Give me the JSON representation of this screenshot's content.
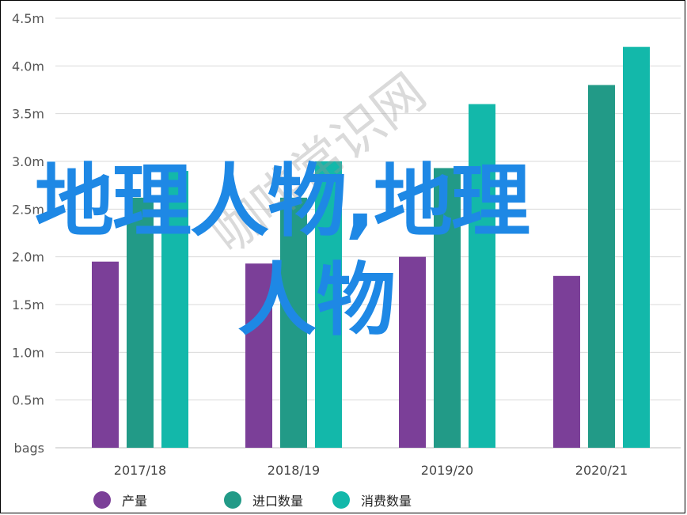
{
  "chart_data": {
    "type": "bar",
    "categories": [
      "2017/18",
      "2018/19",
      "2019/20",
      "2020/21"
    ],
    "series": [
      {
        "name": "产量",
        "color": "#7b3f98",
        "values": [
          1.95,
          1.93,
          2.0,
          1.8
        ]
      },
      {
        "name": "进口数量",
        "color": "#229a87",
        "values": [
          2.62,
          2.62,
          2.93,
          3.8
        ]
      },
      {
        "name": "消费数量",
        "color": "#13b8aa",
        "values": [
          2.9,
          3.0,
          3.6,
          4.2
        ]
      }
    ],
    "ytick_labels": [
      "bags",
      "0.5m",
      "1.0m",
      "1.5m",
      "2.0m",
      "2.5m",
      "3.0m",
      "3.5m",
      "4.0m",
      "4.5m"
    ],
    "ylim": [
      0,
      4.5
    ],
    "grid": true,
    "legend_position": "bottom"
  },
  "overlay_text": {
    "line1": "地理人物,地理",
    "line2": "人物",
    "watermark": "咖啡常识网"
  }
}
